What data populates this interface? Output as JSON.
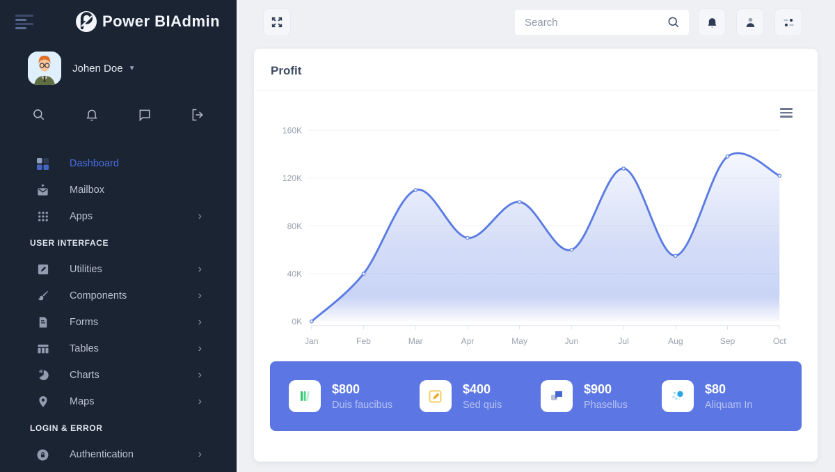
{
  "colors": {
    "sidebar_bg": "#1b2433",
    "page_bg": "#eef0f4",
    "accent_blue": "#4a6ee0",
    "chart_line": "#5b7ce2",
    "stats_bar_bg": "#5c77e4",
    "stat_green": "#31c46f",
    "stat_yellow": "#f0a829",
    "stat_chat_blue": "#4569d4",
    "stat_dot_blue": "#2ba7e8"
  },
  "sidebar": {
    "logo_text": "Power BIAdmin",
    "logo_icon": "power-bi-logo",
    "user": {
      "name": "Johen Doe",
      "avatar": "cartoon-man-avatar"
    },
    "quick_icons": [
      "search-icon",
      "bell-icon",
      "chat-icon",
      "logout-icon"
    ],
    "nav_items": [
      {
        "label": "Dashboard",
        "icon": "dashboard-grid-icon",
        "active": true,
        "has_submenu": false
      },
      {
        "label": "Mailbox",
        "icon": "mailbox-icon",
        "active": false,
        "has_submenu": false
      },
      {
        "label": "Apps",
        "icon": "apps-grid-icon",
        "active": false,
        "has_submenu": true
      },
      {
        "label": "Utilities",
        "icon": "edit-icon",
        "active": false,
        "has_submenu": true
      },
      {
        "label": "Components",
        "icon": "brush-icon",
        "active": false,
        "has_submenu": true
      },
      {
        "label": "Forms",
        "icon": "document-icon",
        "active": false,
        "has_submenu": true
      },
      {
        "label": "Tables",
        "icon": "table-icon",
        "active": false,
        "has_submenu": true
      },
      {
        "label": "Charts",
        "icon": "pie-chart-icon",
        "active": false,
        "has_submenu": true
      },
      {
        "label": "Maps",
        "icon": "map-pin-icon",
        "active": false,
        "has_submenu": true
      },
      {
        "label": "Authentication",
        "icon": "lock-badge-icon",
        "active": false,
        "has_submenu": true
      }
    ],
    "section_headers": [
      {
        "label": "USER INTERFACE"
      },
      {
        "label": "LOGIN & ERROR"
      }
    ],
    "chevron_glyph": "›"
  },
  "topbar": {
    "search_placeholder": "Search",
    "buttons": [
      "fullscreen-icon",
      "bell-icon",
      "person-icon",
      "options-icon"
    ]
  },
  "card": {
    "title": "Profit",
    "menu_icon": "hamburger-menu-icon"
  },
  "chart_data": {
    "type": "area",
    "title": "Profit",
    "x": [
      "Jan",
      "Feb",
      "Mar",
      "Apr",
      "May",
      "Jun",
      "Jul",
      "Aug",
      "Sep",
      "Oct"
    ],
    "series": [
      {
        "name": "Profit",
        "values": [
          0,
          40,
          110,
          70,
          100,
          60,
          128,
          55,
          138,
          122
        ]
      }
    ],
    "unit": "K",
    "ylim": [
      0,
      160
    ],
    "y_ticks": [
      "0K",
      "40K",
      "80K",
      "120K",
      "160K"
    ],
    "grid": true,
    "legend": "none",
    "smooth": true
  },
  "stats_bar": {
    "items": [
      {
        "value": "$800",
        "label": "Duis faucibus",
        "icon": "green-bars-icon"
      },
      {
        "value": "$400",
        "label": "Sed quis",
        "icon": "yellow-pencil-icon"
      },
      {
        "value": "$900",
        "label": "Phasellus",
        "icon": "blue-chat-icon"
      },
      {
        "value": "$80",
        "label": "Aliquam In",
        "icon": "blue-dots-icon"
      }
    ]
  }
}
